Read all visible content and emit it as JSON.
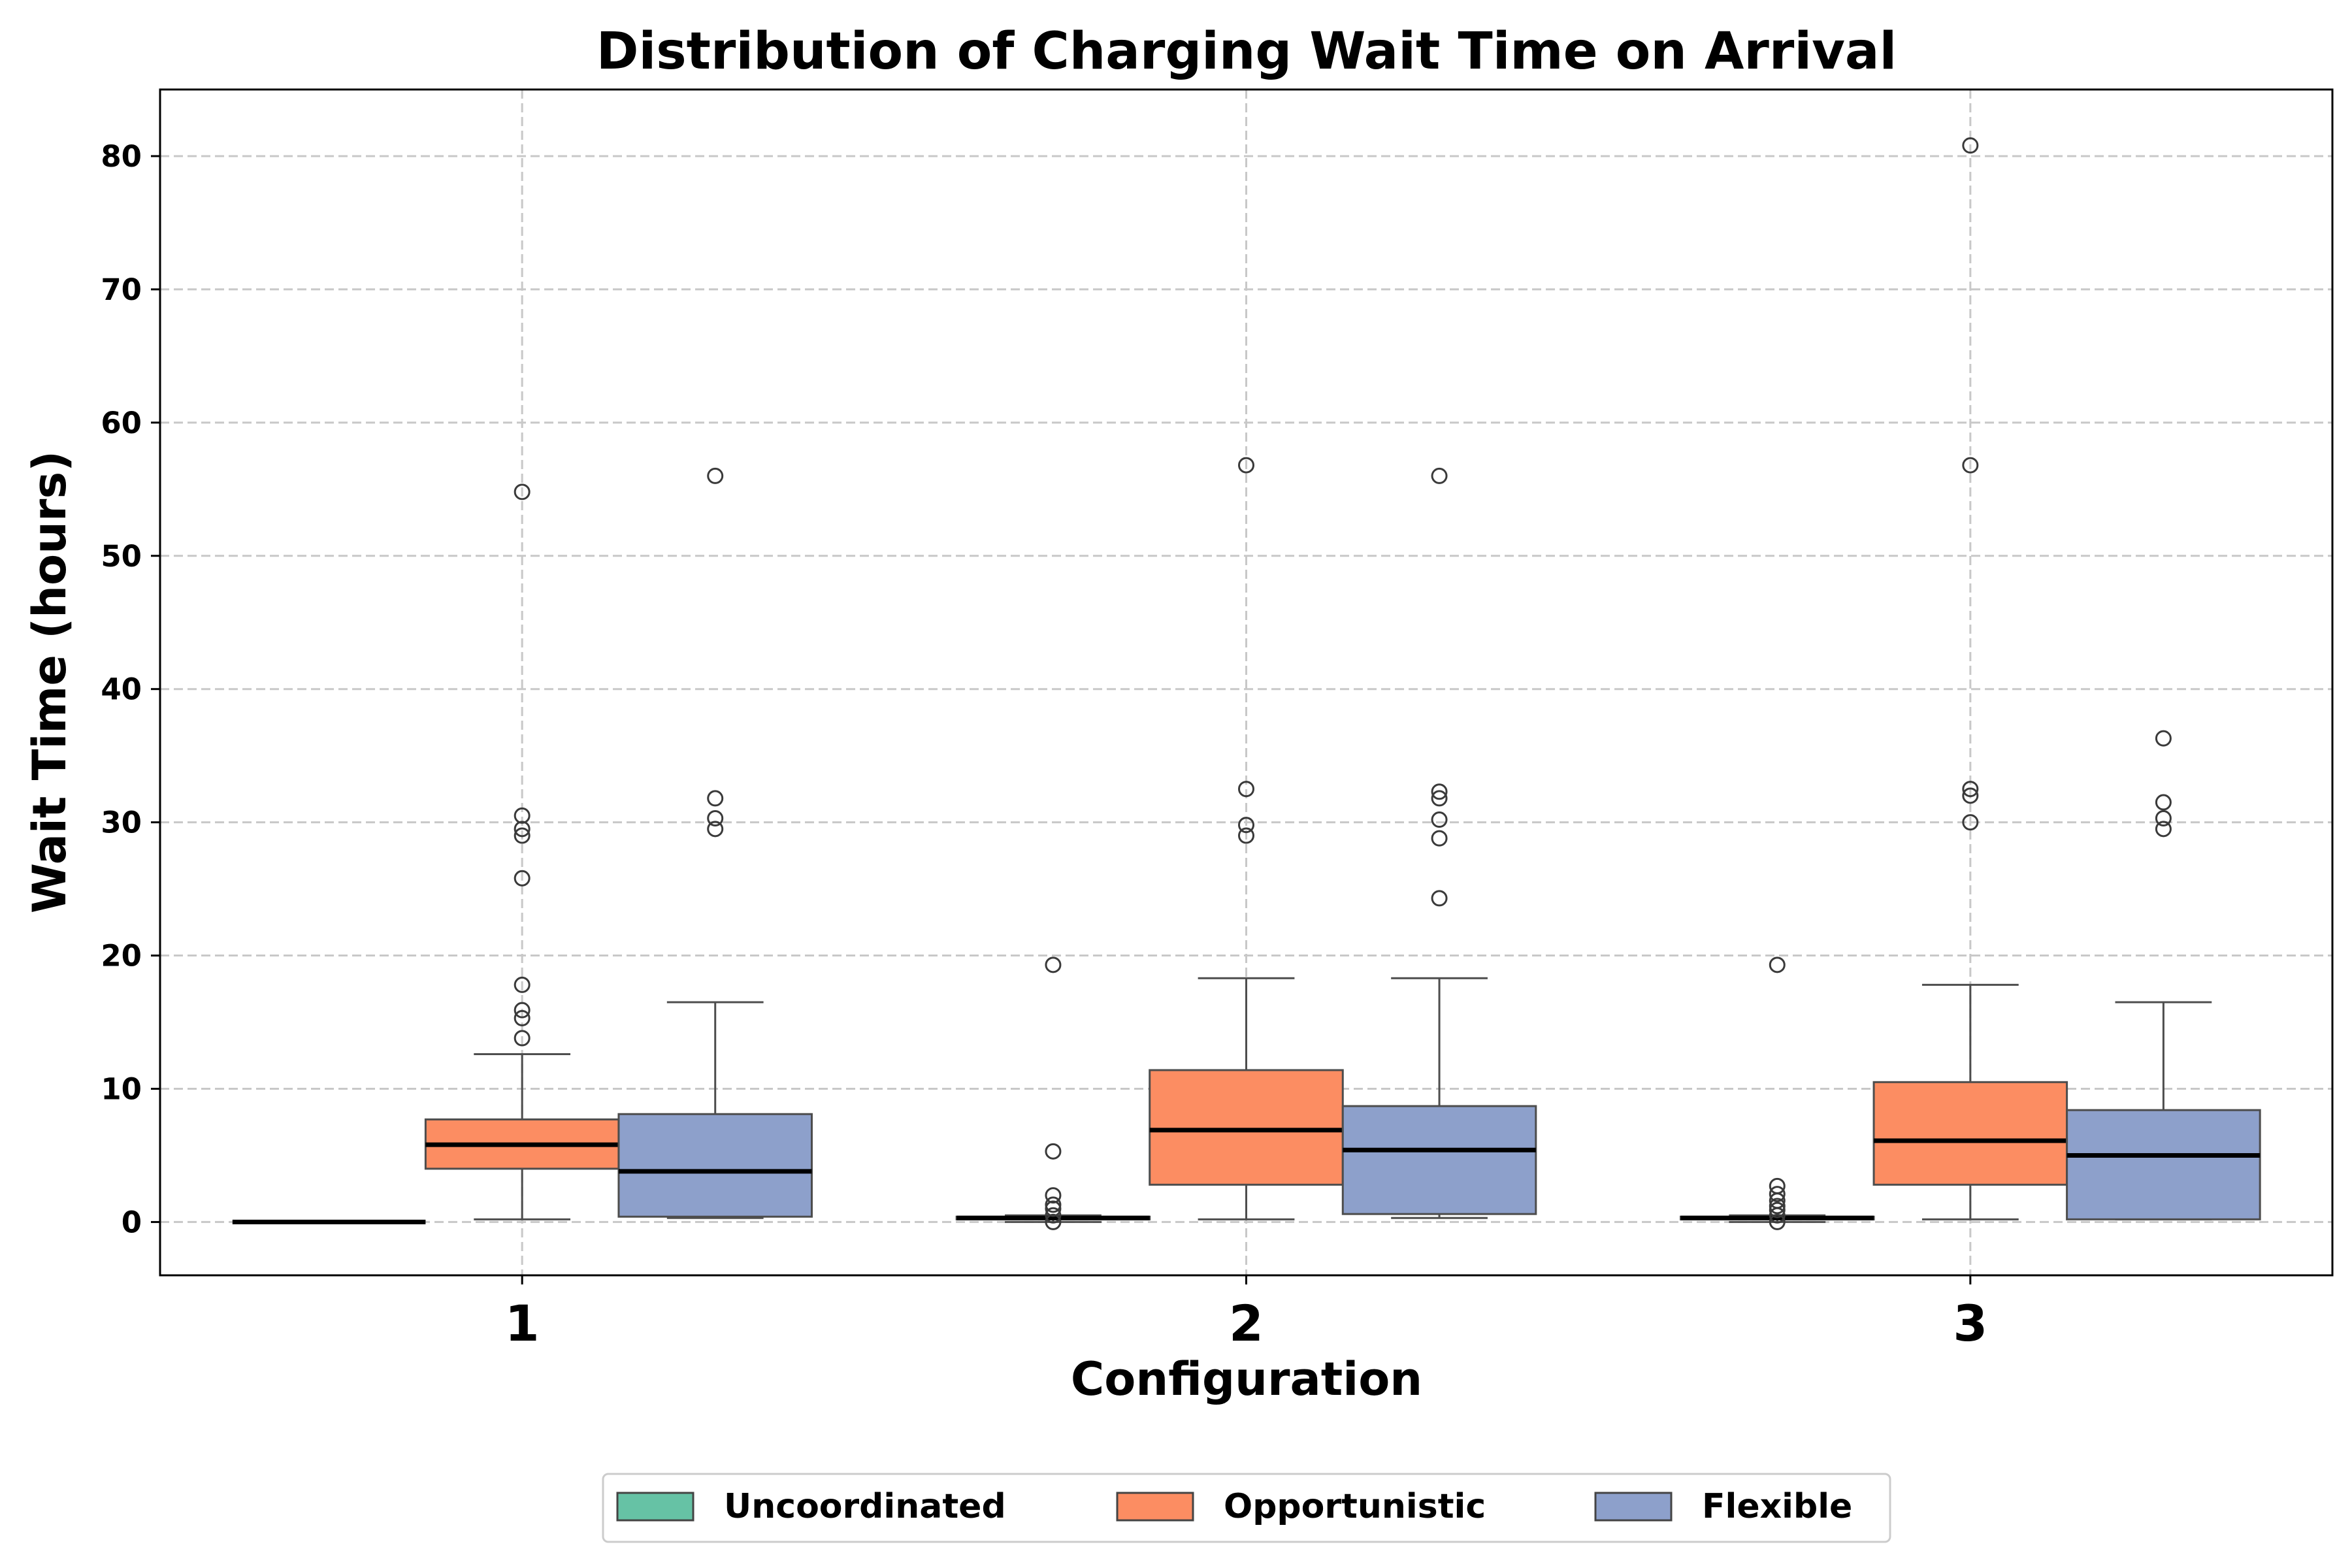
{
  "chart_data": {
    "type": "box",
    "title": "Distribution of Charging Wait Time on Arrival",
    "xlabel": "Configuration",
    "ylabel": "Wait Time (hours)",
    "categories": [
      "1",
      "2",
      "3"
    ],
    "ylim": [
      -4,
      85
    ],
    "yticks": [
      0,
      10,
      20,
      30,
      40,
      50,
      60,
      70,
      80
    ],
    "grid": true,
    "legend_position": "bottom-center",
    "series": [
      {
        "name": "Uncoordinated",
        "color": "#66c2a5",
        "boxes": [
          {
            "whislo": 0,
            "q1": 0,
            "med": 0,
            "q3": 0,
            "whishi": 0,
            "fliers": []
          },
          {
            "whislo": 0,
            "q1": 0.2,
            "med": 0.3,
            "q3": 0.4,
            "whishi": 0.5,
            "fliers": [
              0,
              0.5,
              1.0,
              1.3,
              2.0,
              5.3,
              19.3
            ]
          },
          {
            "whislo": 0,
            "q1": 0.2,
            "med": 0.3,
            "q3": 0.4,
            "whishi": 0.5,
            "fliers": [
              0,
              0.5,
              0.9,
              1.2,
              1.6,
              2.1,
              2.7,
              19.3
            ]
          }
        ]
      },
      {
        "name": "Opportunistic",
        "color": "#fc8d62",
        "boxes": [
          {
            "whislo": 0.2,
            "q1": 4.0,
            "med": 5.8,
            "q3": 7.7,
            "whishi": 12.6,
            "fliers": [
              13.8,
              15.3,
              15.9,
              17.8,
              25.8,
              29.0,
              29.5,
              30.5,
              54.8
            ]
          },
          {
            "whislo": 0.2,
            "q1": 2.8,
            "med": 6.9,
            "q3": 11.4,
            "whishi": 18.3,
            "fliers": [
              29.0,
              29.8,
              32.5,
              56.8
            ]
          },
          {
            "whislo": 0.2,
            "q1": 2.8,
            "med": 6.1,
            "q3": 10.5,
            "whishi": 17.8,
            "fliers": [
              30.0,
              32.0,
              32.5,
              56.8,
              80.8
            ]
          }
        ]
      },
      {
        "name": "Flexible",
        "color": "#8da0cb",
        "boxes": [
          {
            "whislo": 0.3,
            "q1": 0.4,
            "med": 3.8,
            "q3": 8.1,
            "whishi": 16.5,
            "fliers": [
              29.5,
              30.3,
              31.8,
              56.0
            ]
          },
          {
            "whislo": 0.3,
            "q1": 0.6,
            "med": 5.4,
            "q3": 8.7,
            "whishi": 18.3,
            "fliers": [
              24.3,
              28.8,
              30.2,
              31.8,
              32.3,
              56.0
            ]
          },
          {
            "whislo": 0.2,
            "q1": 0.2,
            "med": 5.0,
            "q3": 8.4,
            "whishi": 16.5,
            "fliers": [
              29.5,
              30.3,
              31.5,
              36.3
            ]
          }
        ]
      }
    ]
  }
}
